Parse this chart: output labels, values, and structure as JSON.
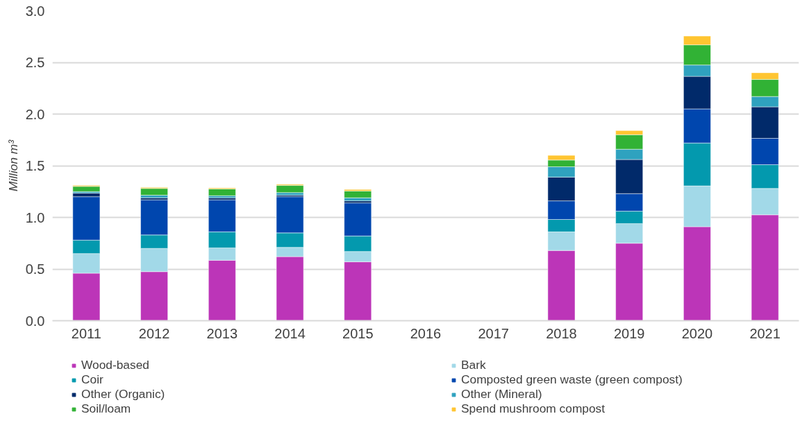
{
  "chart_data": {
    "type": "bar",
    "stacked": true,
    "ylabel": "Million m³",
    "categories": [
      "2011",
      "2012",
      "2013",
      "2014",
      "2015",
      "2016",
      "2017",
      "2018",
      "2019",
      "2020",
      "2021"
    ],
    "series": [
      {
        "name": "Wood-based",
        "color": "#bc35b8",
        "values": [
          0.46,
          0.475,
          0.585,
          0.62,
          0.57,
          null,
          null,
          0.68,
          0.75,
          0.91,
          1.025
        ]
      },
      {
        "name": "Bark",
        "color": "#a2d9e8",
        "values": [
          0.19,
          0.225,
          0.12,
          0.09,
          0.1,
          null,
          null,
          0.18,
          0.19,
          0.395,
          0.255
        ]
      },
      {
        "name": "Coir",
        "color": "#0399ae",
        "values": [
          0.13,
          0.13,
          0.155,
          0.14,
          0.15,
          null,
          null,
          0.12,
          0.12,
          0.415,
          0.23
        ]
      },
      {
        "name": "Composted green waste (green compost)",
        "color": "#0046ae",
        "values": [
          0.42,
          0.34,
          0.31,
          0.35,
          0.32,
          null,
          null,
          0.18,
          0.17,
          0.33,
          0.255
        ]
      },
      {
        "name": "Other (Organic)",
        "color": "#012a6a",
        "values": [
          0.035,
          0.02,
          0.02,
          0.015,
          0.02,
          null,
          null,
          0.23,
          0.33,
          0.315,
          0.305
        ]
      },
      {
        "name": "Other (Mineral)",
        "color": "#2fa2bf",
        "values": [
          0.015,
          0.025,
          0.02,
          0.025,
          0.03,
          null,
          null,
          0.1,
          0.1,
          0.11,
          0.1
        ]
      },
      {
        "name": "Soil/loam",
        "color": "#31b235",
        "values": [
          0.05,
          0.065,
          0.065,
          0.07,
          0.065,
          null,
          null,
          0.065,
          0.14,
          0.195,
          0.165
        ]
      },
      {
        "name": "Spend mushroom compost",
        "color": "#ffc531",
        "values": [
          0.01,
          0.01,
          0.01,
          0.01,
          0.015,
          null,
          null,
          0.045,
          0.04,
          0.085,
          0.065
        ]
      }
    ],
    "ylim": [
      0,
      3.0
    ],
    "yticks": [
      {
        "value": 0,
        "label": "0.0"
      },
      {
        "value": 0.5,
        "label": "0.5"
      },
      {
        "value": 1,
        "label": "1.0"
      },
      {
        "value": 1.5,
        "label": "1.5"
      },
      {
        "value": 2,
        "label": "2.0"
      },
      {
        "value": 2.5,
        "label": "2.5"
      },
      {
        "value": 3,
        "label": "3.0"
      }
    ],
    "grid": "y",
    "legend": "bottom"
  }
}
